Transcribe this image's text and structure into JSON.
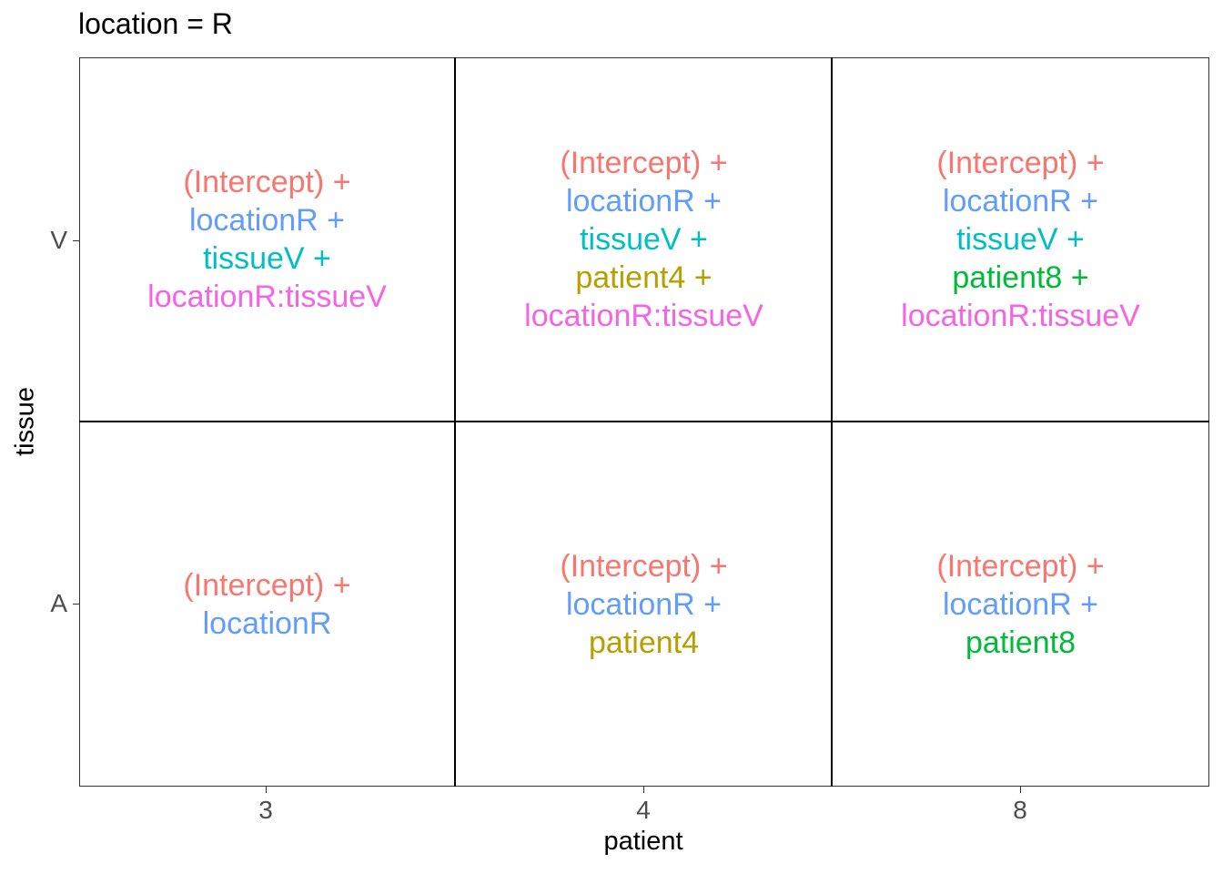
{
  "title": "location = R",
  "xlabel": "patient",
  "ylabel": "tissue",
  "x_ticks": [
    "3",
    "4",
    "8"
  ],
  "y_ticks": [
    "V",
    "A"
  ],
  "term_colors": {
    "(Intercept)": "#F8766D",
    "locationR": "#619CFF",
    "tissueV": "#00BFC4",
    "patient4": "#B79F00",
    "patient8": "#00BA38",
    "locationR:tissueV": "#F564E3"
  },
  "grid": [
    {
      "tissue": "V",
      "cells": [
        {
          "patient": "3",
          "lines": [
            {
              "term": "(Intercept)",
              "text": "(Intercept) +"
            },
            {
              "term": "locationR",
              "text": "locationR +"
            },
            {
              "term": "tissueV",
              "text": "tissueV +"
            },
            {
              "term": "locationR:tissueV",
              "text": "locationR:tissueV"
            }
          ]
        },
        {
          "patient": "4",
          "lines": [
            {
              "term": "(Intercept)",
              "text": "(Intercept) +"
            },
            {
              "term": "locationR",
              "text": "locationR +"
            },
            {
              "term": "tissueV",
              "text": "tissueV +"
            },
            {
              "term": "patient4",
              "text": "patient4 +"
            },
            {
              "term": "locationR:tissueV",
              "text": "locationR:tissueV"
            }
          ]
        },
        {
          "patient": "8",
          "lines": [
            {
              "term": "(Intercept)",
              "text": "(Intercept) +"
            },
            {
              "term": "locationR",
              "text": "locationR +"
            },
            {
              "term": "tissueV",
              "text": "tissueV +"
            },
            {
              "term": "patient8",
              "text": "patient8 +"
            },
            {
              "term": "locationR:tissueV",
              "text": "locationR:tissueV"
            }
          ]
        }
      ]
    },
    {
      "tissue": "A",
      "cells": [
        {
          "patient": "3",
          "lines": [
            {
              "term": "(Intercept)",
              "text": "(Intercept) +"
            },
            {
              "term": "locationR",
              "text": "locationR"
            }
          ]
        },
        {
          "patient": "4",
          "lines": [
            {
              "term": "(Intercept)",
              "text": "(Intercept) +"
            },
            {
              "term": "locationR",
              "text": "locationR +"
            },
            {
              "term": "patient4",
              "text": "patient4"
            }
          ]
        },
        {
          "patient": "8",
          "lines": [
            {
              "term": "(Intercept)",
              "text": "(Intercept) +"
            },
            {
              "term": "locationR",
              "text": "locationR +"
            },
            {
              "term": "patient8",
              "text": "patient8"
            }
          ]
        }
      ]
    }
  ]
}
